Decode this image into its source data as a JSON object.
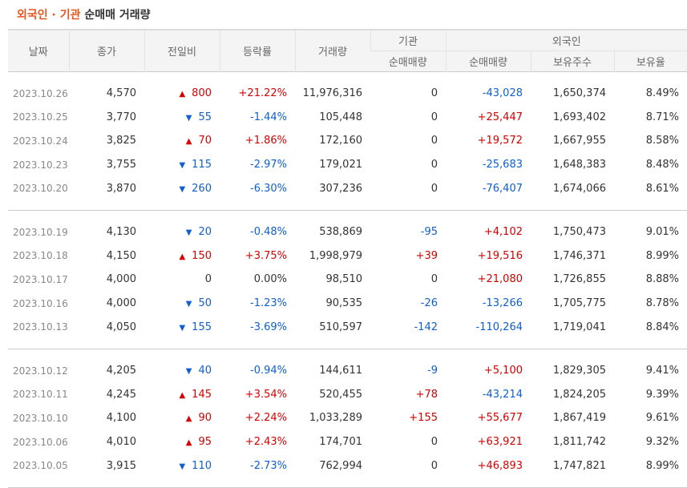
{
  "title": {
    "part1": "외국인 · 기관",
    "part2": "순매매 거래량"
  },
  "headers": {
    "date": "날짜",
    "close": "종가",
    "change": "전일비",
    "rate": "등락률",
    "volume": "거래량",
    "inst": "기관",
    "inst_net": "순매매량",
    "foreign": "외국인",
    "foreign_net": "순매매량",
    "shares": "보유주수",
    "ratio": "보유율"
  },
  "groups": [
    [
      {
        "date": "2023.10.26",
        "close": "4,570",
        "dir": "up",
        "change": "800",
        "rate": "+21.22%",
        "volume": "11,976,316",
        "inst": "0",
        "foreign": "-43,028",
        "shares": "1,650,374",
        "ratio": "8.49%"
      },
      {
        "date": "2023.10.25",
        "close": "3,770",
        "dir": "dn",
        "change": "55",
        "rate": "-1.44%",
        "volume": "105,448",
        "inst": "0",
        "foreign": "+25,447",
        "shares": "1,693,402",
        "ratio": "8.71%"
      },
      {
        "date": "2023.10.24",
        "close": "3,825",
        "dir": "up",
        "change": "70",
        "rate": "+1.86%",
        "volume": "172,160",
        "inst": "0",
        "foreign": "+19,572",
        "shares": "1,667,955",
        "ratio": "8.58%"
      },
      {
        "date": "2023.10.23",
        "close": "3,755",
        "dir": "dn",
        "change": "115",
        "rate": "-2.97%",
        "volume": "179,021",
        "inst": "0",
        "foreign": "-25,683",
        "shares": "1,648,383",
        "ratio": "8.48%"
      },
      {
        "date": "2023.10.20",
        "close": "3,870",
        "dir": "dn",
        "change": "260",
        "rate": "-6.30%",
        "volume": "307,236",
        "inst": "0",
        "foreign": "-76,407",
        "shares": "1,674,066",
        "ratio": "8.61%"
      }
    ],
    [
      {
        "date": "2023.10.19",
        "close": "4,130",
        "dir": "dn",
        "change": "20",
        "rate": "-0.48%",
        "volume": "538,869",
        "inst": "-95",
        "foreign": "+4,102",
        "shares": "1,750,473",
        "ratio": "9.01%"
      },
      {
        "date": "2023.10.18",
        "close": "4,150",
        "dir": "up",
        "change": "150",
        "rate": "+3.75%",
        "volume": "1,998,979",
        "inst": "+39",
        "foreign": "+19,516",
        "shares": "1,746,371",
        "ratio": "8.99%"
      },
      {
        "date": "2023.10.17",
        "close": "4,000",
        "dir": "none",
        "change": "0",
        "rate": "0.00%",
        "volume": "98,510",
        "inst": "0",
        "foreign": "+21,080",
        "shares": "1,726,855",
        "ratio": "8.88%"
      },
      {
        "date": "2023.10.16",
        "close": "4,000",
        "dir": "dn",
        "change": "50",
        "rate": "-1.23%",
        "volume": "90,535",
        "inst": "-26",
        "foreign": "-13,266",
        "shares": "1,705,775",
        "ratio": "8.78%"
      },
      {
        "date": "2023.10.13",
        "close": "4,050",
        "dir": "dn",
        "change": "155",
        "rate": "-3.69%",
        "volume": "510,597",
        "inst": "-142",
        "foreign": "-110,264",
        "shares": "1,719,041",
        "ratio": "8.84%"
      }
    ],
    [
      {
        "date": "2023.10.12",
        "close": "4,205",
        "dir": "dn",
        "change": "40",
        "rate": "-0.94%",
        "volume": "144,611",
        "inst": "-9",
        "foreign": "+5,100",
        "shares": "1,829,305",
        "ratio": "9.41%"
      },
      {
        "date": "2023.10.11",
        "close": "4,245",
        "dir": "up",
        "change": "145",
        "rate": "+3.54%",
        "volume": "520,455",
        "inst": "+78",
        "foreign": "-43,214",
        "shares": "1,824,205",
        "ratio": "9.39%"
      },
      {
        "date": "2023.10.10",
        "close": "4,100",
        "dir": "up",
        "change": "90",
        "rate": "+2.24%",
        "volume": "1,033,289",
        "inst": "+155",
        "foreign": "+55,677",
        "shares": "1,867,419",
        "ratio": "9.61%"
      },
      {
        "date": "2023.10.06",
        "close": "4,010",
        "dir": "up",
        "change": "95",
        "rate": "+2.43%",
        "volume": "174,701",
        "inst": "0",
        "foreign": "+63,921",
        "shares": "1,811,742",
        "ratio": "9.32%"
      },
      {
        "date": "2023.10.05",
        "close": "3,915",
        "dir": "dn",
        "change": "110",
        "rate": "-2.73%",
        "volume": "762,994",
        "inst": "0",
        "foreign": "+46,893",
        "shares": "1,747,821",
        "ratio": "8.99%"
      }
    ]
  ],
  "colors": {
    "up": "#d60000",
    "down": "#0f5fd0",
    "accent": "#e8561c"
  },
  "icons": {
    "up": "up-triangle-icon",
    "down": "down-triangle-icon"
  }
}
